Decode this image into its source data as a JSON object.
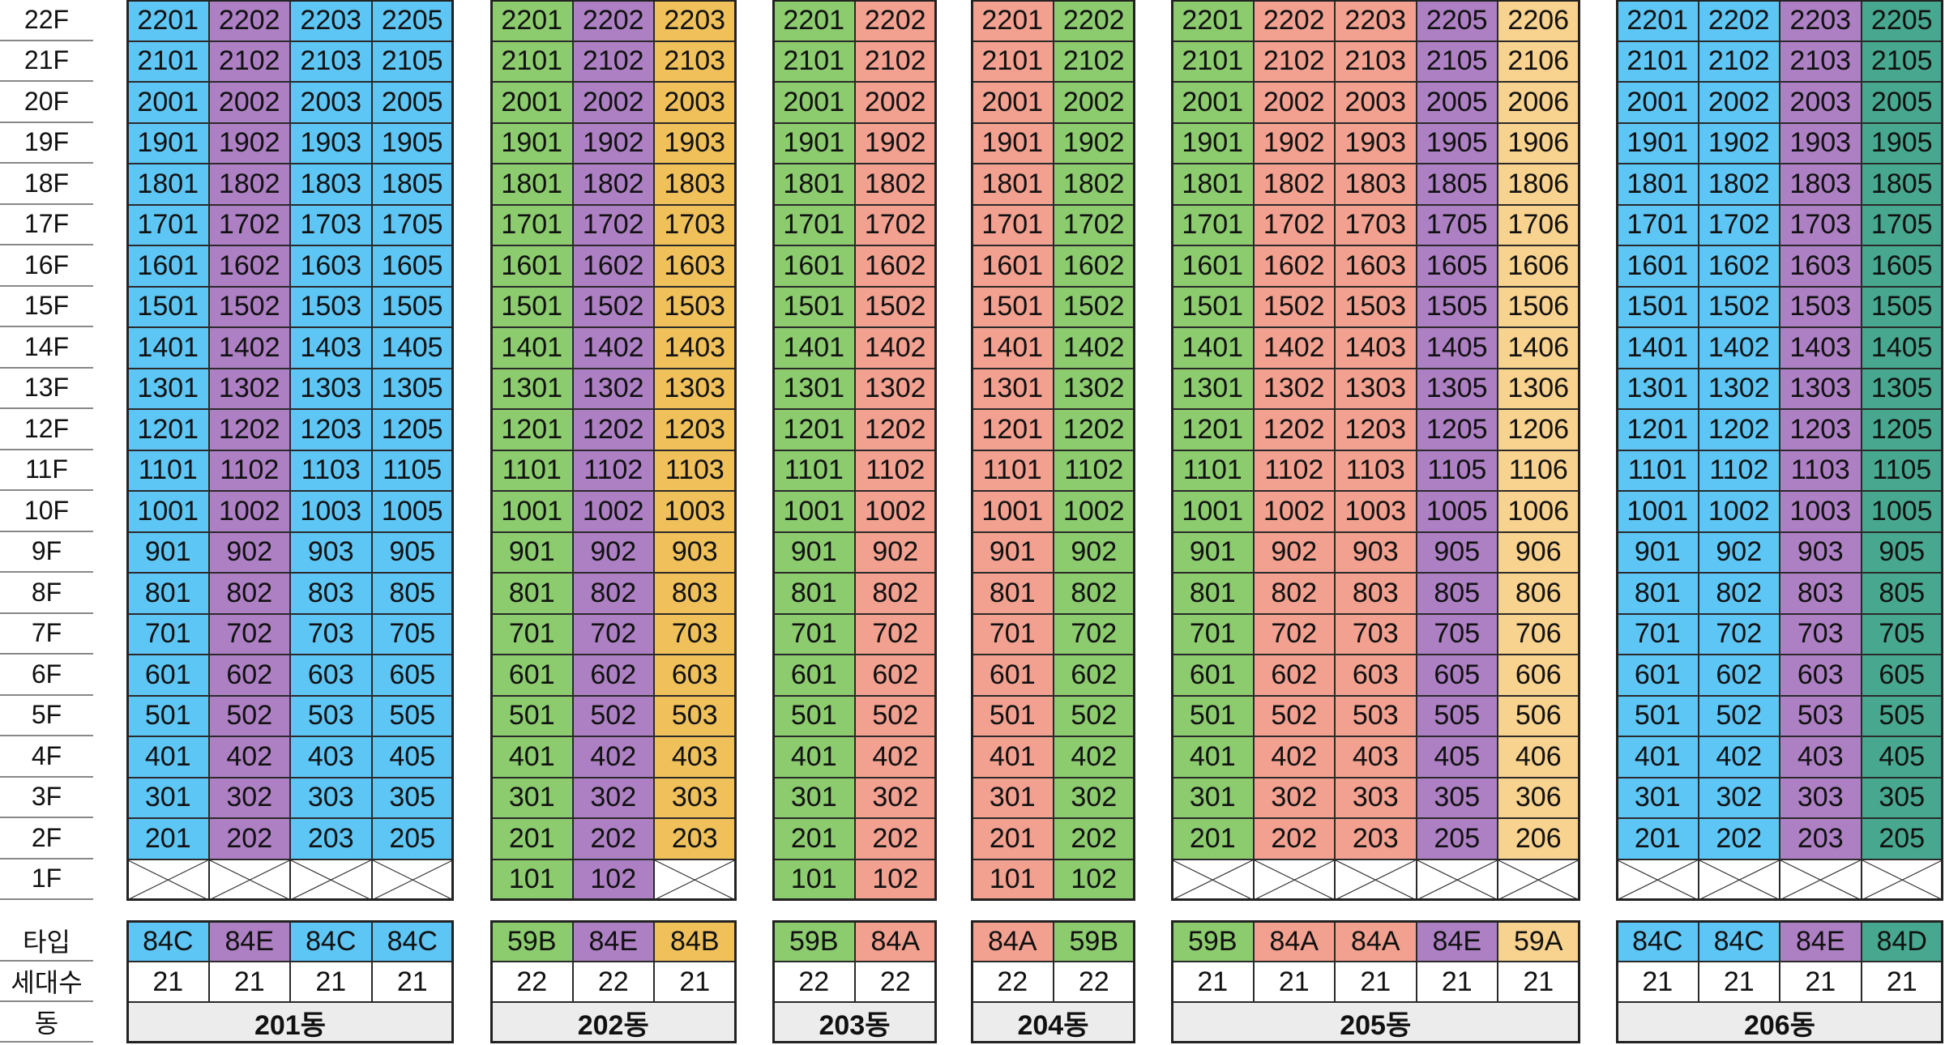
{
  "colors": {
    "blue": "#5ec6f5",
    "purple": "#ad80c4",
    "green": "#8ccb6e",
    "orange": "#f0c15a",
    "salmon": "#f2a090",
    "peach": "#f8d28f",
    "teal": "#47a88f",
    "name_bg": "#ececec"
  },
  "floor_labels": [
    "22F",
    "21F",
    "20F",
    "19F",
    "18F",
    "17F",
    "16F",
    "15F",
    "14F",
    "13F",
    "12F",
    "11F",
    "10F",
    "9F",
    "8F",
    "7F",
    "6F",
    "5F",
    "4F",
    "3F",
    "2F",
    "1F"
  ],
  "legend_labels": {
    "type": "타입",
    "households": "세대수",
    "building": "동"
  },
  "buildings": [
    {
      "name": "201동",
      "units": [
        {
          "line": "01",
          "type": "84C",
          "count": "21",
          "color": "blue",
          "has_first_floor": false
        },
        {
          "line": "02",
          "type": "84E",
          "count": "21",
          "color": "purple",
          "has_first_floor": false
        },
        {
          "line": "03",
          "type": "84C",
          "count": "21",
          "color": "blue",
          "has_first_floor": false
        },
        {
          "line": "05",
          "type": "84C",
          "count": "21",
          "color": "blue",
          "has_first_floor": false
        }
      ]
    },
    {
      "name": "202동",
      "units": [
        {
          "line": "01",
          "type": "59B",
          "count": "22",
          "color": "green",
          "has_first_floor": true
        },
        {
          "line": "02",
          "type": "84E",
          "count": "22",
          "color": "purple",
          "has_first_floor": true
        },
        {
          "line": "03",
          "type": "84B",
          "count": "21",
          "color": "orange",
          "has_first_floor": false
        }
      ]
    },
    {
      "name": "203동",
      "units": [
        {
          "line": "01",
          "type": "59B",
          "count": "22",
          "color": "green",
          "has_first_floor": true
        },
        {
          "line": "02",
          "type": "84A",
          "count": "22",
          "color": "salmon",
          "has_first_floor": true
        }
      ]
    },
    {
      "name": "204동",
      "units": [
        {
          "line": "01",
          "type": "84A",
          "count": "22",
          "color": "salmon",
          "has_first_floor": true
        },
        {
          "line": "02",
          "type": "59B",
          "count": "22",
          "color": "green",
          "has_first_floor": true
        }
      ]
    },
    {
      "name": "205동",
      "units": [
        {
          "line": "01",
          "type": "59B",
          "count": "21",
          "color": "green",
          "has_first_floor": false
        },
        {
          "line": "02",
          "type": "84A",
          "count": "21",
          "color": "salmon",
          "has_first_floor": false
        },
        {
          "line": "03",
          "type": "84A",
          "count": "21",
          "color": "salmon",
          "has_first_floor": false
        },
        {
          "line": "05",
          "type": "84E",
          "count": "21",
          "color": "purple",
          "has_first_floor": false
        },
        {
          "line": "06",
          "type": "59A",
          "count": "21",
          "color": "peach",
          "has_first_floor": false
        }
      ]
    },
    {
      "name": "206동",
      "units": [
        {
          "line": "01",
          "type": "84C",
          "count": "21",
          "color": "blue",
          "has_first_floor": false
        },
        {
          "line": "02",
          "type": "84C",
          "count": "21",
          "color": "blue",
          "has_first_floor": false
        },
        {
          "line": "03",
          "type": "84E",
          "count": "21",
          "color": "purple",
          "has_first_floor": false
        },
        {
          "line": "05",
          "type": "84D",
          "count": "21",
          "color": "teal",
          "has_first_floor": false
        }
      ]
    }
  ]
}
